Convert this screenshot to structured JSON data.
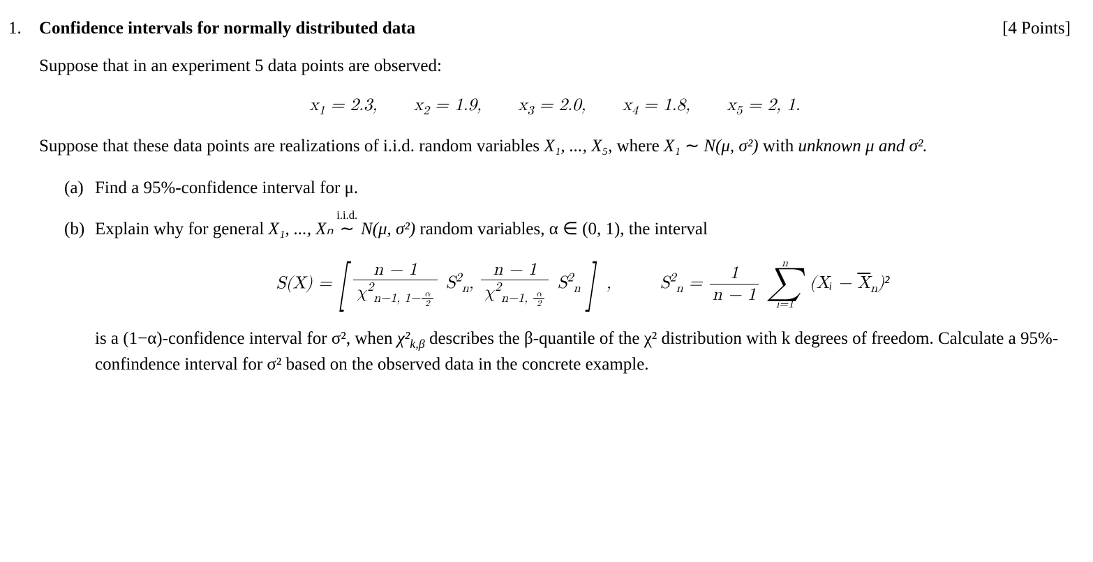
{
  "problem_number": "1.",
  "title": "Confidence intervals for normally distributed data",
  "points_label": "[4 Points]",
  "intro": "Suppose that in an experiment 5 data points are observed:",
  "datapoints": [
    {
      "var": "x",
      "idx": "1",
      "val": "2.3"
    },
    {
      "var": "x",
      "idx": "2",
      "val": "1.9"
    },
    {
      "var": "x",
      "idx": "3",
      "val": "2.0"
    },
    {
      "var": "x",
      "idx": "4",
      "val": "1.8"
    },
    {
      "var": "x",
      "idx": "5",
      "val": "2, 1"
    }
  ],
  "suppose_pre": "Suppose that these data points are realizations of i.i.d. random variables ",
  "suppose_vars": "X₁, ..., X₅",
  "suppose_mid": ", where ",
  "suppose_x1": "X₁",
  "suppose_sim": " ∼ ",
  "dist_N": "N",
  "dist_args": "(μ, σ²)",
  "suppose_with": " with ",
  "unknown_word": "unknown",
  "suppose_tail": " μ and σ².",
  "part_a_label": "(a)",
  "part_a_text_pre": "Find a ",
  "part_a_conf": "95%",
  "part_a_text_post": "-confidence interval for μ.",
  "part_b_label": "(b)",
  "part_b_pre": "Explain why for general ",
  "part_b_vars": "X₁, ..., Xₙ",
  "iid_label": "i.i.d.",
  "iid_sym": "∼",
  "part_b_post": " random variables, α ∈ (0, 1), the interval",
  "SX": "S(X)",
  "eq_comma": ",",
  "n_minus_1": "n − 1",
  "chi": "χ",
  "chi_sub_left": "n−1, 1−",
  "chi_sub_right": "n−1, ",
  "alpha_half_num": "α",
  "alpha_half_den": "2",
  "Sn2_lhs": "S",
  "Sn2_sub": "n",
  "Sn2_sup": "2",
  "sum_top": "n",
  "sum_bot": "i=1",
  "sum_term_pre": "(Xᵢ − ",
  "Xbar": "X",
  "Xbar_sub": "n",
  "sum_term_post": ")²",
  "part_b_para_pre": "is a (1−α)-confidence interval for σ², when ",
  "chi_kbeta": "χ²",
  "chi_kbeta_sub": "k,β",
  "part_b_para_mid": " describes the β-quantile of the χ² distribution with k degrees of freedom. Calculate a ",
  "part_b_conf": "95%",
  "part_b_para_post": "-confindence interval for σ² based on the observed data in the concrete example.",
  "colors": {
    "text": "#000000",
    "background": "#ffffff"
  },
  "typography": {
    "body_fontsize_pt": 19,
    "family": "serif"
  }
}
